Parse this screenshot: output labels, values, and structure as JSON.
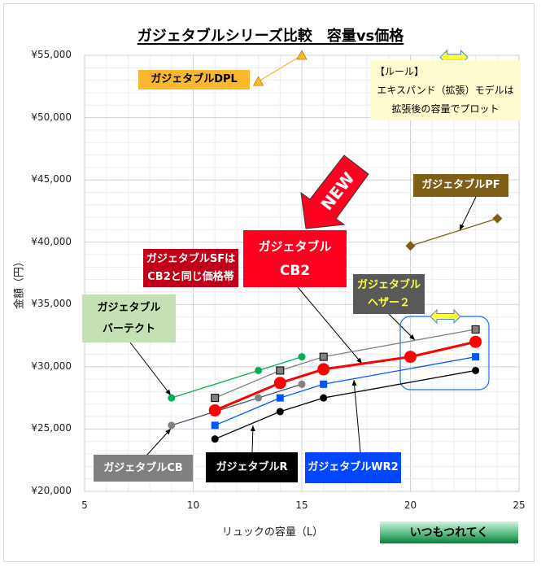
{
  "chart_data": {
    "type": "scatter",
    "title": "ガジェタブルシリーズ比較　容量vs価格",
    "xlabel": "リュックの容量（L）",
    "ylabel": "金額（円）",
    "xlim": [
      5,
      25
    ],
    "ylim": [
      20000,
      55000
    ],
    "xticks": [
      "5",
      "10",
      "15",
      "20",
      "25"
    ],
    "yticks": [
      "¥20,000",
      "¥25,000",
      "¥30,000",
      "¥35,000",
      "¥40,000",
      "¥45,000",
      "¥50,000",
      "¥55,000"
    ],
    "grid": true,
    "series": [
      {
        "name": "ガジェタブルDPL",
        "color": "#FBB730",
        "marker": "triangle",
        "x": [
          13,
          15
        ],
        "y": [
          52900,
          55000
        ]
      },
      {
        "name": "ガジェタブルPF",
        "color": "#7F5F17",
        "marker": "diamond",
        "x": [
          20,
          24
        ],
        "y": [
          39700,
          41900
        ]
      },
      {
        "name": "ガジェタブル バーテクト",
        "color": "#00B050",
        "marker": "circle",
        "x": [
          9,
          13,
          15
        ],
        "y": [
          27500,
          29700,
          30800
        ]
      },
      {
        "name": "ガジェタブルCB",
        "color": "#808080",
        "line": "#44546A",
        "marker": "circle",
        "x": [
          9,
          13,
          15
        ],
        "y": [
          25300,
          27500,
          28600
        ]
      },
      {
        "name": "ガジェタブル ヘザー２",
        "color": "#808080",
        "marker": "square",
        "x": [
          11,
          14,
          16,
          23
        ],
        "y": [
          27500,
          29700,
          30800,
          33000
        ]
      },
      {
        "name": "ガジェタブル CB2",
        "color": "#FF0000",
        "marker": "bigcircle",
        "x": [
          11,
          14,
          16,
          20,
          23
        ],
        "y": [
          26500,
          28700,
          29800,
          30800,
          32000
        ]
      },
      {
        "name": "ガジェタブルWR2",
        "color": "#0055FF",
        "marker": "square",
        "x": [
          11,
          14,
          16,
          23
        ],
        "y": [
          25300,
          27500,
          28600,
          30800
        ]
      },
      {
        "name": "ガジェタブルR",
        "color": "#000000",
        "marker": "circle",
        "x": [
          11,
          14,
          16,
          23
        ],
        "y": [
          24200,
          26400,
          27500,
          29700
        ]
      }
    ]
  },
  "labels": {
    "dpl": "ガジェタブルDPL",
    "pf": "ガジェタブルPF",
    "sf": [
      "ガジェタブルSFは",
      "CB2と同じ価格帯"
    ],
    "cb2": [
      "ガジェタブル",
      "CB2"
    ],
    "heather": [
      "ガジェタブル",
      "ヘザー２"
    ],
    "vertect": [
      "ガジェタブル",
      "バーテクト"
    ],
    "cb": "ガジェタブルCB",
    "r": "ガジェタブルR",
    "wr2": "ガジェタブルWR2",
    "new": "NEW",
    "rule": [
      "【ルール】",
      "エキスパンド（拡張）モデルは",
      "拡張後の容量でプロット"
    ],
    "brand": "いつもつれてく"
  },
  "colors": {
    "cb2_label": "#FF0020",
    "sf_label": "#C00018",
    "heather_text": "#FFFF40",
    "rule_bg": "#FFFBD0"
  }
}
